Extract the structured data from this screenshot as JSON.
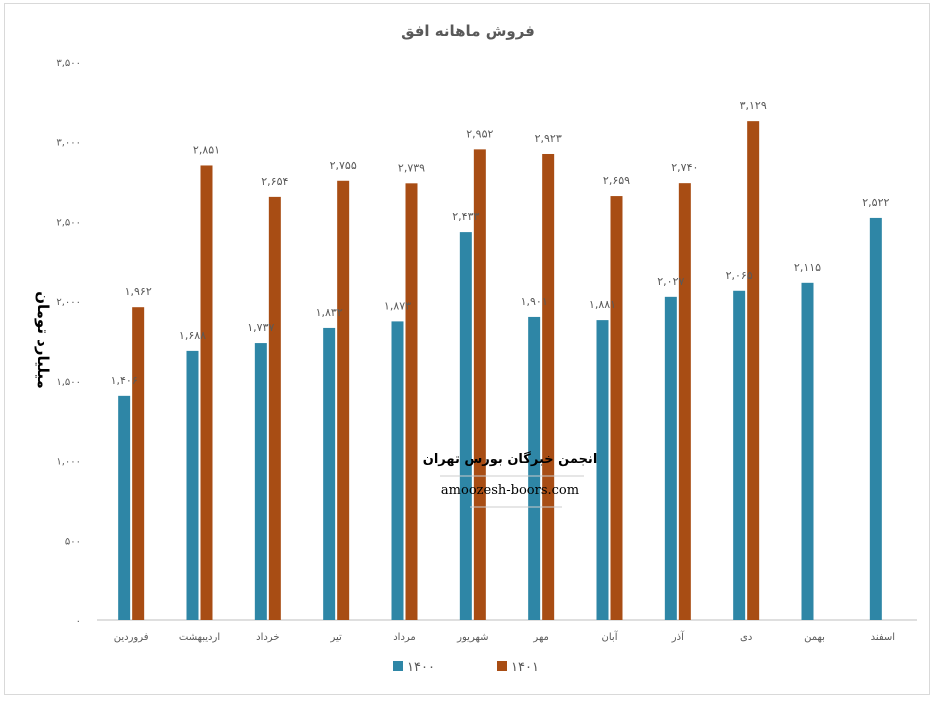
{
  "chart_data": {
    "type": "bar",
    "title": "فروش ماهانه افق",
    "xlabel": "",
    "ylabel": "میلیارد تومان",
    "ylim": [
      0,
      3500
    ],
    "y_ticks": [
      "۰",
      "۵۰۰",
      "۱,۰۰۰",
      "۱,۵۰۰",
      "۲,۰۰۰",
      "۲,۵۰۰",
      "۳,۰۰۰",
      "۳,۵۰۰"
    ],
    "grid": false,
    "legend_position": "bottom",
    "categories": [
      "فروردین",
      "اردیبهشت",
      "خرداد",
      "تیر",
      "مرداد",
      "شهریور",
      "مهر",
      "آبان",
      "آذر",
      "دی",
      "بهمن",
      "اسفند"
    ],
    "series": [
      {
        "name": "۱۴۰۰",
        "color": "#2e86a6",
        "values": [
          1406,
          1688,
          1737,
          1832,
          1873,
          2433,
          1901,
          1881,
          2027,
          2065,
          2115,
          2522
        ],
        "labels": [
          "۱,۴۰۶",
          "۱,۶۸۸",
          "۱,۷۳۷",
          "۱,۸۳۲",
          "۱,۸۷۳",
          "۲,۴۳۳",
          "۱,۹۰۱",
          "۱,۸۸۱",
          "۲,۰۲۷",
          "۲,۰۶۵",
          "۲,۱۱۵",
          "۲,۵۲۲"
        ]
      },
      {
        "name": "۱۴۰۱",
        "color": "#a84d14",
        "values": [
          1962,
          2851,
          2654,
          2755,
          2739,
          2952,
          2923,
          2659,
          2740,
          3129,
          null,
          null
        ],
        "labels": [
          "۱,۹۶۲",
          "۲,۸۵۱",
          "۲,۶۵۴",
          "۲,۷۵۵",
          "۲,۷۳۹",
          "۲,۹۵۲",
          "۲,۹۲۳",
          "۲,۶۵۹",
          "۲,۷۴۰",
          "۳,۱۲۹",
          "",
          ""
        ]
      }
    ]
  },
  "watermark": {
    "title": "انجمن خبرگان بورس تهران",
    "url": "amoozesh-boors.com"
  }
}
